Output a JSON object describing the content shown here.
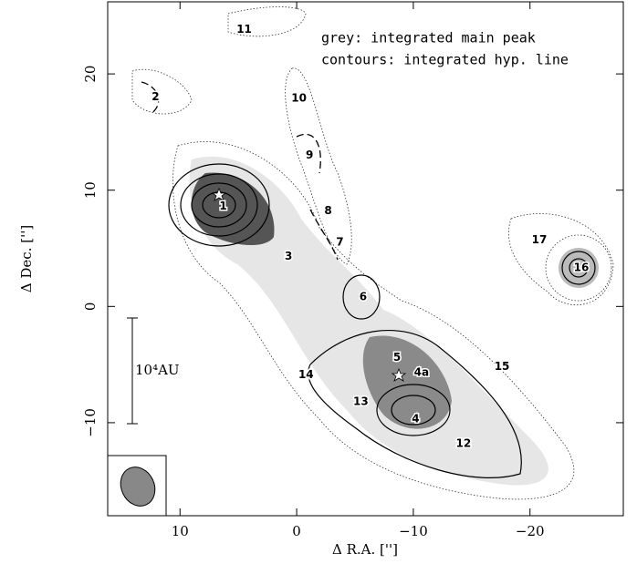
{
  "chart_data": {
    "type": "contour",
    "xlabel": "Δ R.A. ['']",
    "ylabel": "Δ Dec. ['']",
    "annotations": [
      "grey: integrated main peak",
      "contours: integrated hyp. line"
    ],
    "scale_bar_label": "10⁴AU",
    "xlim": [
      16.2,
      -28
    ],
    "ylim": [
      -18,
      26.2
    ],
    "xticks": [
      10,
      0,
      {
        "value": -10,
        "label": "−10"
      },
      {
        "value": -20,
        "label": "−20"
      }
    ],
    "yticks": [
      20,
      10,
      0,
      {
        "value": -10,
        "label": "−10"
      }
    ],
    "sources": [
      {
        "name": "11",
        "x": 4.5,
        "y": 23.8
      },
      {
        "name": "2",
        "x": 12.1,
        "y": 18.0
      },
      {
        "name": "10",
        "x": -0.2,
        "y": 17.9
      },
      {
        "name": "9",
        "x": -1.1,
        "y": 13.0
      },
      {
        "name": "1",
        "x": 6.3,
        "y": 8.6
      },
      {
        "name": "8",
        "x": -2.7,
        "y": 8.2
      },
      {
        "name": "7",
        "x": -3.7,
        "y": 5.5
      },
      {
        "name": "3",
        "x": 0.7,
        "y": 4.3
      },
      {
        "name": "17",
        "x": -20.8,
        "y": 5.7
      },
      {
        "name": "16",
        "x": -24.4,
        "y": 3.3
      },
      {
        "name": "6",
        "x": -5.7,
        "y": 0.8
      },
      {
        "name": "5",
        "x": -8.6,
        "y": -4.4
      },
      {
        "name": "4a",
        "x": -10.7,
        "y": -5.7
      },
      {
        "name": "15",
        "x": -17.6,
        "y": -5.2
      },
      {
        "name": "14",
        "x": -0.8,
        "y": -5.9
      },
      {
        "name": "13",
        "x": -5.5,
        "y": -8.2
      },
      {
        "name": "4",
        "x": -10.2,
        "y": -9.7
      },
      {
        "name": "12",
        "x": -14.3,
        "y": -11.8
      }
    ]
  }
}
